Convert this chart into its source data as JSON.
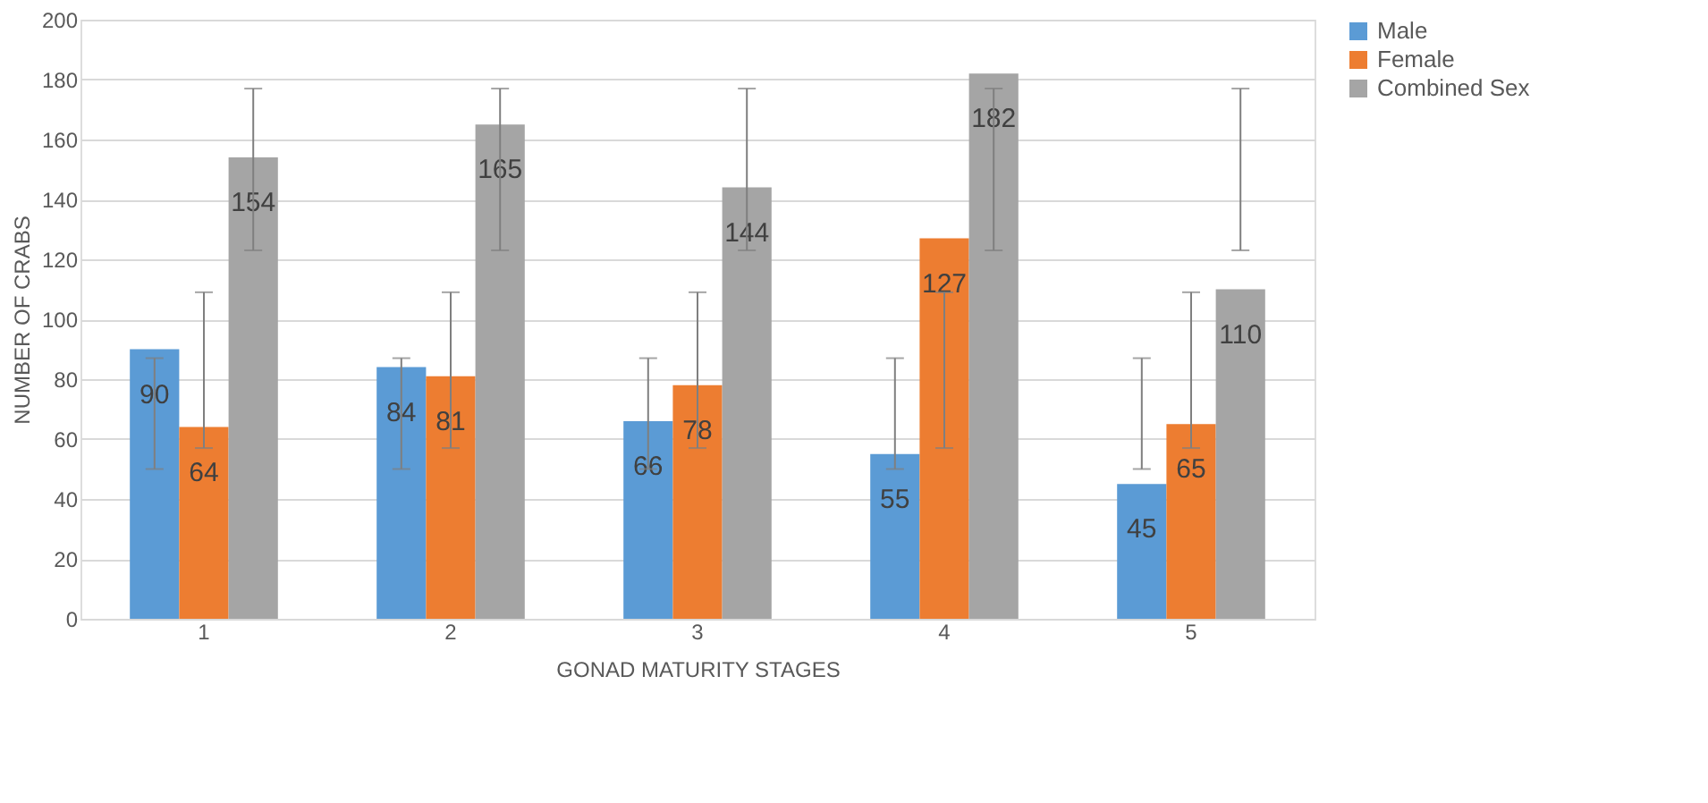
{
  "chart_data": {
    "type": "bar",
    "xlabel": "GONAD MATURITY STAGES",
    "ylabel": "NUMBER OF CRABS",
    "categories": [
      "1",
      "2",
      "3",
      "4",
      "5"
    ],
    "series": [
      {
        "name": "Male",
        "color": "#5b9bd5",
        "values": [
          90,
          84,
          66,
          55,
          45
        ],
        "errors": [
          [
            50,
            87
          ],
          [
            50,
            87
          ],
          [
            50,
            87
          ],
          [
            50,
            87
          ],
          [
            50,
            87
          ]
        ]
      },
      {
        "name": "Female",
        "color": "#ed7d31",
        "values": [
          64,
          81,
          78,
          127,
          65
        ],
        "errors": [
          [
            57,
            109
          ],
          [
            57,
            109
          ],
          [
            57,
            109
          ],
          [
            57,
            109
          ],
          [
            57,
            109
          ]
        ]
      },
      {
        "name": "Combined Sex",
        "color": "#a5a5a5",
        "values": [
          154,
          165,
          144,
          182,
          110
        ],
        "errors": [
          [
            123,
            177
          ],
          [
            123,
            177
          ],
          [
            123,
            177
          ],
          [
            123,
            177
          ],
          [
            123,
            177
          ]
        ]
      }
    ],
    "ylim": [
      0,
      200
    ],
    "yticks": [
      0,
      20,
      40,
      60,
      80,
      100,
      120,
      140,
      160,
      180,
      200
    ],
    "grid": "y",
    "legend": "right",
    "data_labels": true
  }
}
